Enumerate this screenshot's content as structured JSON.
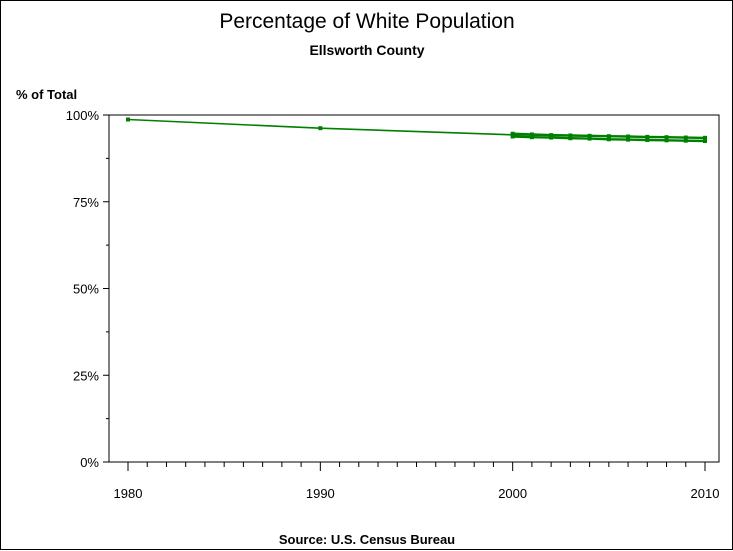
{
  "chart_data": {
    "type": "line",
    "title": "Percentage of White Population",
    "subtitle": "Ellsworth County",
    "ylabel": "% of Total",
    "source": "Source: U.S. Census Bureau",
    "xlim": [
      1980,
      2010
    ],
    "ylim": [
      0,
      100
    ],
    "x_ticks": [
      {
        "value": 1980,
        "label": "1980"
      },
      {
        "value": 1990,
        "label": "1990"
      },
      {
        "value": 2000,
        "label": "2000"
      },
      {
        "value": 2010,
        "label": "2010"
      }
    ],
    "y_ticks": [
      {
        "value": 0,
        "label": "0%"
      },
      {
        "value": 25,
        "label": "25%"
      },
      {
        "value": 50,
        "label": "50%"
      },
      {
        "value": 75,
        "label": "75%"
      },
      {
        "value": 100,
        "label": "100%"
      }
    ],
    "grid": false,
    "color": "#008000",
    "series": [
      {
        "x": [
          1980,
          1990,
          2000,
          2010
        ],
        "y": [
          98.7,
          96.2,
          94.3,
          93.4
        ]
      },
      {
        "x": [
          2000,
          2001,
          2002,
          2003,
          2004,
          2005,
          2006,
          2007,
          2008,
          2009,
          2010
        ],
        "y": [
          93.8,
          93.6,
          93.5,
          93.3,
          93.2,
          93.0,
          92.9,
          92.8,
          92.7,
          92.6,
          92.5
        ]
      },
      {
        "x": [
          2000,
          2001,
          2002,
          2003,
          2004,
          2005,
          2006,
          2007,
          2008,
          2009,
          2010
        ],
        "y": [
          94.6,
          94.4,
          94.2,
          94.1,
          94.0,
          93.9,
          93.8,
          93.7,
          93.6,
          93.5,
          93.4
        ]
      }
    ]
  }
}
